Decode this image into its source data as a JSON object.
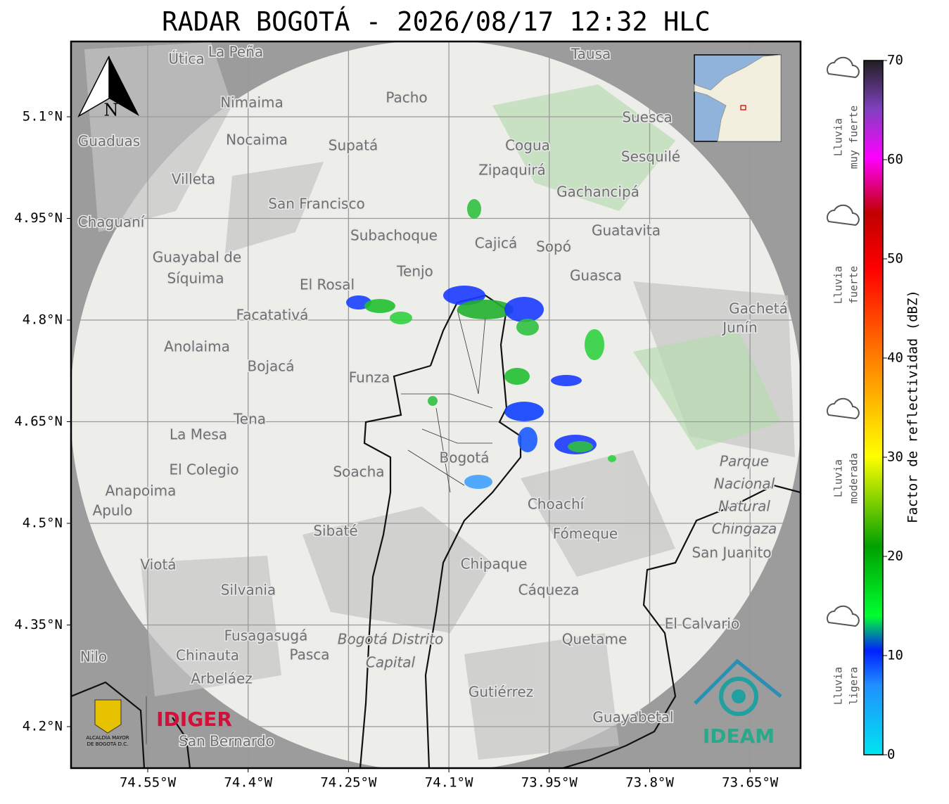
{
  "title": "RADAR BOGOTÁ - 2026/08/17 12:32 HLC",
  "lat_labels": [
    "5.1°N",
    "4.95°N",
    "4.8°N",
    "4.65°N",
    "4.5°N",
    "4.35°N",
    "4.2°N"
  ],
  "lon_labels": [
    "74.55°W",
    "74.4°W",
    "74.25°W",
    "74.1°W",
    "73.95°W",
    "73.8°W",
    "73.65°W"
  ],
  "north": "N",
  "colorbar": {
    "label": "Factor de reflectividad (dBZ)",
    "range": [
      0,
      70
    ],
    "ticks": [
      0,
      10,
      20,
      30,
      40,
      50,
      60,
      70
    ]
  },
  "rain_levels": [
    {
      "lines": [
        "Lluvia",
        "muy fuerte"
      ]
    },
    {
      "lines": [
        "Lluvia",
        "fuerte"
      ]
    },
    {
      "lines": [
        "Lluvia",
        "moderada"
      ]
    },
    {
      "lines": [
        "Lluvia",
        "ligera"
      ]
    }
  ],
  "places": [
    "La Peña",
    "Útica",
    "Tausa",
    "Pacho",
    "Nimaima",
    "Nocaima",
    "Guaduas",
    "Supatá",
    "Suesca",
    "Cogua",
    "Sesquilé",
    "Zipaquirá",
    "Villeta",
    "San Francisco",
    "Gachancipá",
    "Chaguaní",
    "Guatavita",
    "Subachoque",
    "Cajicá",
    "Sopó",
    "Guayabal de",
    "Síquima",
    "Tenjo",
    "Guasca",
    "El Rosal",
    "Gachetá",
    "Junín",
    "Facatativá",
    "Anolaima",
    "Bojacá",
    "Funza",
    "Tena",
    "La Mesa",
    "Bogotá",
    "Soacha",
    "El Colegio",
    "Anapoima",
    "Apulo",
    "Choachí",
    "Sibaté",
    "Fómeque",
    "San Juanito",
    "Chipaque",
    "Viotá",
    "Silvania",
    "Cáqueza",
    "El Calvario",
    "Fusagasugá",
    "Quetame",
    "Chinauta",
    "Pasca",
    "Nilo",
    "Arbeláez",
    "Gutiérrez",
    "Guayabetal",
    "San Bernardo"
  ],
  "park": [
    "Parque",
    "Nacional",
    "Natural",
    "Chingaza"
  ],
  "district": [
    "Bogotá Distrito",
    "Capital"
  ],
  "logos": {
    "idiger": "IDIGER",
    "alcaldia": [
      "ALCALDÍA MAYOR",
      "DE BOGOTÁ D.C."
    ],
    "ideam": "IDEAM"
  }
}
